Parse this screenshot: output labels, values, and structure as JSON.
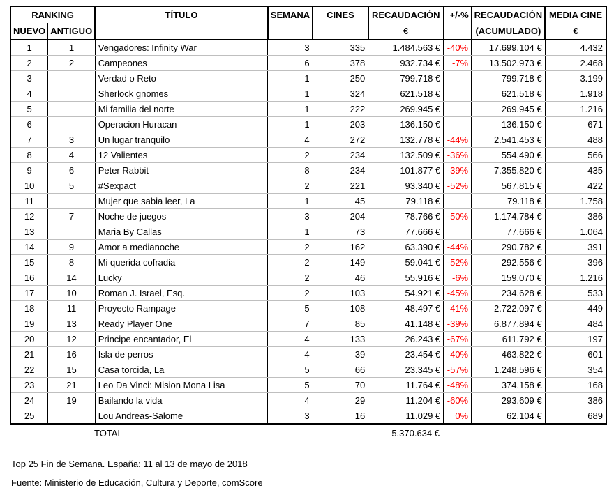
{
  "header": {
    "ranking": "RANKING",
    "nuevo": "NUEVO",
    "antiguo": "ANTIGUO",
    "titulo": "TÍTULO",
    "semana": "SEMANA",
    "cines": "CINES",
    "recaudacion_line1": "RECAUDACIÓN",
    "recaudacion_line2": "€",
    "pct": "+/-%",
    "acumulado_line1": "RECAUDACIÓN",
    "acumulado_line2": "(ACUMULADO)",
    "media_line1": "MEDIA CINE",
    "media_line2": "€"
  },
  "rows": [
    {
      "nuevo": "1",
      "antiguo": "1",
      "titulo": "Vengadores: Infinity War",
      "semana": "3",
      "cines": "335",
      "recaudacion": "1.484.563 €",
      "pct": "-40%",
      "acumulado": "17.699.104 €",
      "media": "4.432"
    },
    {
      "nuevo": "2",
      "antiguo": "2",
      "titulo": "Campeones",
      "semana": "6",
      "cines": "378",
      "recaudacion": "932.734 €",
      "pct": "-7%",
      "acumulado": "13.502.973 €",
      "media": "2.468"
    },
    {
      "nuevo": "3",
      "antiguo": "",
      "titulo": "Verdad o Reto",
      "semana": "1",
      "cines": "250",
      "recaudacion": "799.718 €",
      "pct": "",
      "acumulado": "799.718 €",
      "media": "3.199"
    },
    {
      "nuevo": "4",
      "antiguo": "",
      "titulo": "Sherlock gnomes",
      "semana": "1",
      "cines": "324",
      "recaudacion": "621.518 €",
      "pct": "",
      "acumulado": "621.518 €",
      "media": "1.918"
    },
    {
      "nuevo": "5",
      "antiguo": "",
      "titulo": "Mi familia del norte",
      "semana": "1",
      "cines": "222",
      "recaudacion": "269.945 €",
      "pct": "",
      "acumulado": "269.945 €",
      "media": "1.216"
    },
    {
      "nuevo": "6",
      "antiguo": "",
      "titulo": "Operacion Huracan",
      "semana": "1",
      "cines": "203",
      "recaudacion": "136.150 €",
      "pct": "",
      "acumulado": "136.150 €",
      "media": "671"
    },
    {
      "nuevo": "7",
      "antiguo": "3",
      "titulo": "Un lugar tranquilo",
      "semana": "4",
      "cines": "272",
      "recaudacion": "132.778 €",
      "pct": "-44%",
      "acumulado": "2.541.453 €",
      "media": "488"
    },
    {
      "nuevo": "8",
      "antiguo": "4",
      "titulo": "12 Valientes",
      "semana": "2",
      "cines": "234",
      "recaudacion": "132.509 €",
      "pct": "-36%",
      "acumulado": "554.490 €",
      "media": "566"
    },
    {
      "nuevo": "9",
      "antiguo": "6",
      "titulo": "Peter Rabbit",
      "semana": "8",
      "cines": "234",
      "recaudacion": "101.877 €",
      "pct": "-39%",
      "acumulado": "7.355.820 €",
      "media": "435"
    },
    {
      "nuevo": "10",
      "antiguo": "5",
      "titulo": "#Sexpact",
      "semana": "2",
      "cines": "221",
      "recaudacion": "93.340 €",
      "pct": "-52%",
      "acumulado": "567.815 €",
      "media": "422"
    },
    {
      "nuevo": "11",
      "antiguo": "",
      "titulo": "Mujer que sabia leer, La",
      "semana": "1",
      "cines": "45",
      "recaudacion": "79.118 €",
      "pct": "",
      "acumulado": "79.118 €",
      "media": "1.758"
    },
    {
      "nuevo": "12",
      "antiguo": "7",
      "titulo": "Noche de juegos",
      "semana": "3",
      "cines": "204",
      "recaudacion": "78.766 €",
      "pct": "-50%",
      "acumulado": "1.174.784 €",
      "media": "386"
    },
    {
      "nuevo": "13",
      "antiguo": "",
      "titulo": "Maria By Callas",
      "semana": "1",
      "cines": "73",
      "recaudacion": "77.666 €",
      "pct": "",
      "acumulado": "77.666 €",
      "media": "1.064"
    },
    {
      "nuevo": "14",
      "antiguo": "9",
      "titulo": "Amor a medianoche",
      "semana": "2",
      "cines": "162",
      "recaudacion": "63.390 €",
      "pct": "-44%",
      "acumulado": "290.782 €",
      "media": "391"
    },
    {
      "nuevo": "15",
      "antiguo": "8",
      "titulo": "Mi querida cofradia",
      "semana": "2",
      "cines": "149",
      "recaudacion": "59.041 €",
      "pct": "-52%",
      "acumulado": "292.556 €",
      "media": "396"
    },
    {
      "nuevo": "16",
      "antiguo": "14",
      "titulo": "Lucky",
      "semana": "2",
      "cines": "46",
      "recaudacion": "55.916 €",
      "pct": "-6%",
      "acumulado": "159.070 €",
      "media": "1.216"
    },
    {
      "nuevo": "17",
      "antiguo": "10",
      "titulo": "Roman J. Israel, Esq.",
      "semana": "2",
      "cines": "103",
      "recaudacion": "54.921 €",
      "pct": "-45%",
      "acumulado": "234.628 €",
      "media": "533"
    },
    {
      "nuevo": "18",
      "antiguo": "11",
      "titulo": "Proyecto Rampage",
      "semana": "5",
      "cines": "108",
      "recaudacion": "48.497 €",
      "pct": "-41%",
      "acumulado": "2.722.097 €",
      "media": "449"
    },
    {
      "nuevo": "19",
      "antiguo": "13",
      "titulo": "Ready Player One",
      "semana": "7",
      "cines": "85",
      "recaudacion": "41.148 €",
      "pct": "-39%",
      "acumulado": "6.877.894 €",
      "media": "484"
    },
    {
      "nuevo": "20",
      "antiguo": "12",
      "titulo": "Principe encantador, El",
      "semana": "4",
      "cines": "133",
      "recaudacion": "26.243 €",
      "pct": "-67%",
      "acumulado": "611.792 €",
      "media": "197"
    },
    {
      "nuevo": "21",
      "antiguo": "16",
      "titulo": "Isla de perros",
      "semana": "4",
      "cines": "39",
      "recaudacion": "23.454 €",
      "pct": "-40%",
      "acumulado": "463.822 €",
      "media": "601"
    },
    {
      "nuevo": "22",
      "antiguo": "15",
      "titulo": "Casa torcida, La",
      "semana": "5",
      "cines": "66",
      "recaudacion": "23.345 €",
      "pct": "-57%",
      "acumulado": "1.248.596 €",
      "media": "354"
    },
    {
      "nuevo": "23",
      "antiguo": "21",
      "titulo": "Leo Da Vinci: Mision Mona Lisa",
      "semana": "5",
      "cines": "70",
      "recaudacion": "11.764 €",
      "pct": "-48%",
      "acumulado": "374.158 €",
      "media": "168"
    },
    {
      "nuevo": "24",
      "antiguo": "19",
      "titulo": "Bailando la vida",
      "semana": "4",
      "cines": "29",
      "recaudacion": "11.204 €",
      "pct": "-60%",
      "acumulado": "293.609 €",
      "media": "386"
    },
    {
      "nuevo": "25",
      "antiguo": "",
      "titulo": "Lou Andreas-Salome",
      "semana": "3",
      "cines": "16",
      "recaudacion": "11.029 €",
      "pct": "0%",
      "acumulado": "62.104 €",
      "media": "689"
    }
  ],
  "total": {
    "label": "TOTAL",
    "recaudacion": "5.370.634 €"
  },
  "footer": {
    "line1": "Top 25 Fin de Semana. España: 11 al 13 de mayo de 2018",
    "line2": "Fuente: Ministerio de Educación, Cultura y Deporte, comScore"
  },
  "colors": {
    "negative_pct": "#FF0000",
    "row_divider": "#BFBFBF",
    "border": "#000000"
  }
}
